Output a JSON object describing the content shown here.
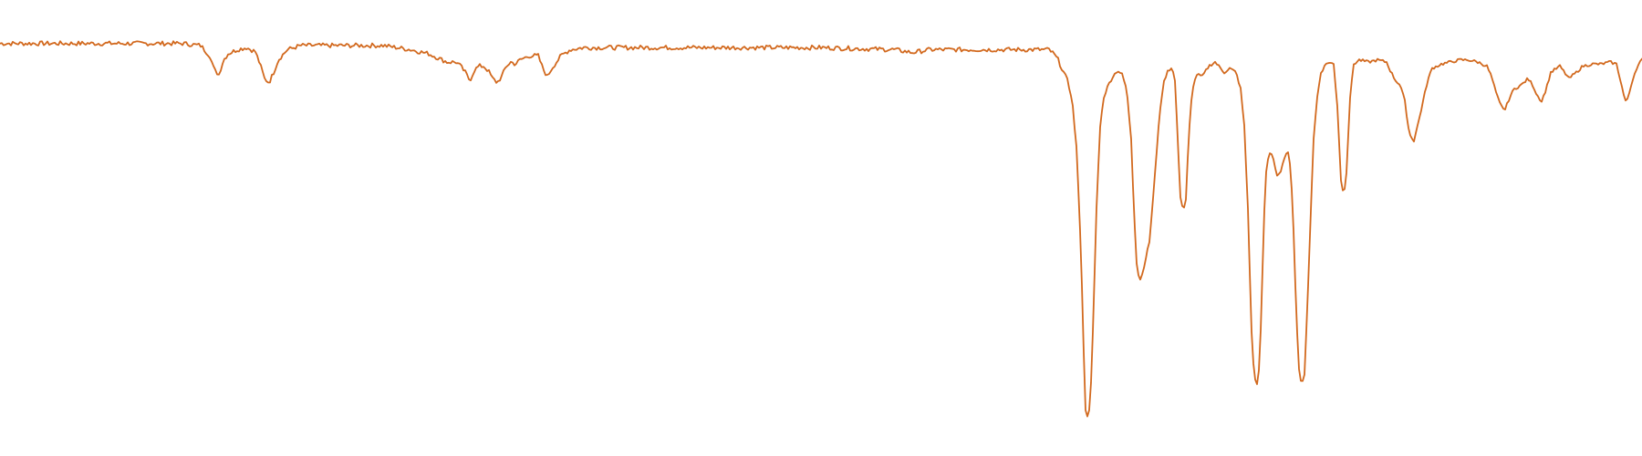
{
  "chart_data": {
    "type": "line",
    "title": "",
    "xlabel": "",
    "ylabel": "",
    "xlim": [
      0,
      1800
    ],
    "ylim": [
      0,
      100
    ],
    "grid": false,
    "legend": "none",
    "series": [
      {
        "color": "#D2691E",
        "points": [
          [
            0,
            95.0
          ],
          [
            100,
            95.0
          ],
          [
            200,
            95.0
          ],
          [
            220,
            94.5
          ],
          [
            230,
            92.0
          ],
          [
            235,
            88.5
          ],
          [
            240,
            87.5
          ],
          [
            245,
            91.0
          ],
          [
            250,
            92.5
          ],
          [
            260,
            93.5
          ],
          [
            270,
            94.0
          ],
          [
            280,
            93.0
          ],
          [
            285,
            90.0
          ],
          [
            290,
            86.5
          ],
          [
            295,
            85.5
          ],
          [
            300,
            88.0
          ],
          [
            305,
            91.0
          ],
          [
            315,
            93.5
          ],
          [
            330,
            94.5
          ],
          [
            380,
            94.5
          ],
          [
            420,
            94.5
          ],
          [
            450,
            93.5
          ],
          [
            470,
            92.5
          ],
          [
            480,
            91.5
          ],
          [
            490,
            90.5
          ],
          [
            500,
            90.5
          ],
          [
            505,
            89.5
          ],
          [
            510,
            88.0
          ],
          [
            515,
            86.0
          ],
          [
            520,
            88.5
          ],
          [
            525,
            89.5
          ],
          [
            530,
            89.5
          ],
          [
            535,
            88.5
          ],
          [
            540,
            86.5
          ],
          [
            545,
            85.5
          ],
          [
            550,
            87.0
          ],
          [
            555,
            89.5
          ],
          [
            560,
            90.5
          ],
          [
            565,
            90.0
          ],
          [
            570,
            91.0
          ],
          [
            580,
            92.0
          ],
          [
            590,
            92.0
          ],
          [
            595,
            89.0
          ],
          [
            600,
            87.0
          ],
          [
            605,
            89.0
          ],
          [
            615,
            92.0
          ],
          [
            625,
            93.5
          ],
          [
            640,
            94.0
          ],
          [
            700,
            94.0
          ],
          [
            800,
            94.0
          ],
          [
            900,
            94.0
          ],
          [
            980,
            93.5
          ],
          [
            1000,
            92.8
          ],
          [
            1020,
            93.5
          ],
          [
            1100,
            93.5
          ],
          [
            1150,
            93.5
          ],
          [
            1155,
            92.5
          ],
          [
            1160,
            91.0
          ],
          [
            1165,
            88.5
          ],
          [
            1170,
            86.0
          ],
          [
            1175,
            82.0
          ],
          [
            1180,
            70.0
          ],
          [
            1185,
            45.0
          ],
          [
            1188,
            20.0
          ],
          [
            1190,
            6.5
          ],
          [
            1192,
            5.0
          ],
          [
            1195,
            6.5
          ],
          [
            1198,
            25.0
          ],
          [
            1202,
            55.0
          ],
          [
            1206,
            75.0
          ],
          [
            1210,
            82.0
          ],
          [
            1215,
            85.0
          ],
          [
            1220,
            87.0
          ],
          [
            1225,
            88.5
          ],
          [
            1230,
            87.5
          ],
          [
            1235,
            84.0
          ],
          [
            1240,
            72.0
          ],
          [
            1243,
            55.0
          ],
          [
            1246,
            42.0
          ],
          [
            1249,
            37.5
          ],
          [
            1252,
            39.0
          ],
          [
            1255,
            42.0
          ],
          [
            1260,
            47.0
          ],
          [
            1265,
            60.0
          ],
          [
            1270,
            75.0
          ],
          [
            1275,
            85.0
          ],
          [
            1280,
            88.5
          ],
          [
            1285,
            89.0
          ],
          [
            1288,
            86.0
          ],
          [
            1291,
            72.0
          ],
          [
            1294,
            58.0
          ],
          [
            1297,
            54.5
          ],
          [
            1300,
            57.0
          ],
          [
            1303,
            72.0
          ],
          [
            1307,
            84.0
          ],
          [
            1312,
            87.5
          ],
          [
            1318,
            87.0
          ],
          [
            1325,
            89.5
          ],
          [
            1332,
            90.5
          ],
          [
            1338,
            89.0
          ],
          [
            1342,
            88.0
          ],
          [
            1348,
            89.0
          ],
          [
            1355,
            88.0
          ],
          [
            1360,
            84.0
          ],
          [
            1364,
            75.0
          ],
          [
            1368,
            55.0
          ],
          [
            1372,
            25.0
          ],
          [
            1375,
            14.0
          ],
          [
            1378,
            12.5
          ],
          [
            1381,
            18.0
          ],
          [
            1384,
            40.0
          ],
          [
            1387,
            62.0
          ],
          [
            1390,
            67.0
          ],
          [
            1393,
            69.0
          ],
          [
            1396,
            67.0
          ],
          [
            1400,
            63.0
          ],
          [
            1404,
            64.0
          ],
          [
            1408,
            67.0
          ],
          [
            1412,
            69.0
          ],
          [
            1415,
            64.0
          ],
          [
            1418,
            50.0
          ],
          [
            1421,
            30.0
          ],
          [
            1424,
            16.0
          ],
          [
            1427,
            12.5
          ],
          [
            1430,
            15.0
          ],
          [
            1433,
            30.0
          ],
          [
            1437,
            55.0
          ],
          [
            1440,
            72.0
          ],
          [
            1444,
            82.0
          ],
          [
            1448,
            88.0
          ],
          [
            1455,
            90.5
          ],
          [
            1462,
            90.0
          ],
          [
            1466,
            80.0
          ],
          [
            1470,
            62.0
          ],
          [
            1473,
            58.0
          ],
          [
            1476,
            64.0
          ],
          [
            1480,
            82.0
          ],
          [
            1484,
            90.0
          ],
          [
            1490,
            91.0
          ],
          [
            1500,
            90.5
          ],
          [
            1510,
            91.0
          ],
          [
            1520,
            90.5
          ],
          [
            1525,
            88.0
          ],
          [
            1530,
            86.0
          ],
          [
            1535,
            85.0
          ],
          [
            1540,
            81.0
          ],
          [
            1545,
            73.0
          ],
          [
            1550,
            71.5
          ],
          [
            1555,
            76.0
          ],
          [
            1560,
            81.0
          ],
          [
            1565,
            86.0
          ],
          [
            1570,
            89.0
          ],
          [
            1580,
            90.0
          ],
          [
            1590,
            90.5
          ],
          [
            1600,
            91.0
          ],
          [
            1610,
            91.0
          ],
          [
            1620,
            90.5
          ],
          [
            1630,
            89.5
          ],
          [
            1635,
            87.0
          ],
          [
            1640,
            83.0
          ],
          [
            1645,
            80.0
          ],
          [
            1650,
            79.0
          ],
          [
            1655,
            82.0
          ],
          [
            1660,
            84.0
          ],
          [
            1668,
            85.0
          ],
          [
            1675,
            86.5
          ],
          [
            1680,
            85.0
          ],
          [
            1685,
            82.5
          ],
          [
            1690,
            81.0
          ],
          [
            1695,
            84.0
          ],
          [
            1700,
            88.0
          ],
          [
            1710,
            89.5
          ],
          [
            1715,
            88.0
          ],
          [
            1720,
            86.5
          ],
          [
            1728,
            88.0
          ],
          [
            1735,
            89.5
          ],
          [
            1745,
            90.0
          ],
          [
            1755,
            90.0
          ],
          [
            1765,
            90.5
          ],
          [
            1772,
            90.0
          ],
          [
            1776,
            86.5
          ],
          [
            1780,
            82.5
          ],
          [
            1783,
            80.5
          ],
          [
            1786,
            83.0
          ],
          [
            1790,
            86.5
          ],
          [
            1794,
            89.0
          ],
          [
            1798,
            90.5
          ],
          [
            1800,
            91.0
          ]
        ]
      }
    ]
  }
}
